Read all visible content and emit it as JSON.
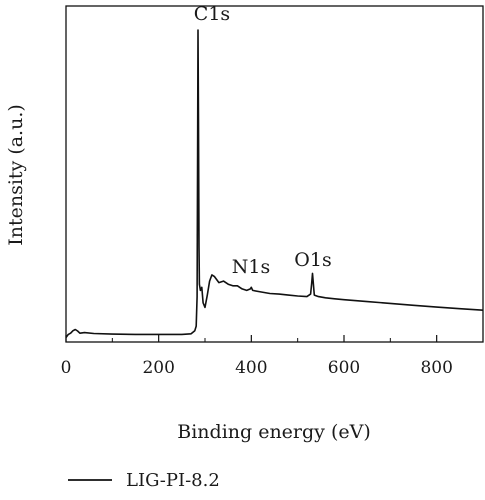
{
  "chart_data": {
    "type": "line",
    "title": "",
    "xlabel": "Binding energy (eV)",
    "ylabel": "Intensity (a.u.)",
    "xlim": [
      0,
      900
    ],
    "ylim": [
      0,
      100
    ],
    "x_ticks": [
      0,
      200,
      400,
      600,
      800
    ],
    "y_ticks_shown": false,
    "grid": false,
    "legend_position": "bottom-left",
    "series": [
      {
        "name": "LIG-PI-8.2",
        "color": "#111111",
        "points": [
          [
            0,
            0.8
          ],
          [
            5,
            1.8
          ],
          [
            10,
            2.2
          ],
          [
            15,
            3.0
          ],
          [
            20,
            3.4
          ],
          [
            25,
            2.9
          ],
          [
            30,
            2.2
          ],
          [
            40,
            2.4
          ],
          [
            60,
            2.1
          ],
          [
            100,
            1.9
          ],
          [
            150,
            1.8
          ],
          [
            200,
            1.8
          ],
          [
            250,
            1.8
          ],
          [
            270,
            2.0
          ],
          [
            278,
            3.0
          ],
          [
            281,
            4.5
          ],
          [
            283,
            14.0
          ],
          [
            284,
            60.0
          ],
          [
            285,
            100.0
          ],
          [
            286,
            70.0
          ],
          [
            287,
            30.0
          ],
          [
            288,
            18.0
          ],
          [
            290,
            16.0
          ],
          [
            293,
            17.0
          ],
          [
            296,
            12.0
          ],
          [
            300,
            10.5
          ],
          [
            305,
            14.5
          ],
          [
            310,
            19.0
          ],
          [
            315,
            21.0
          ],
          [
            320,
            20.5
          ],
          [
            330,
            18.5
          ],
          [
            340,
            19.0
          ],
          [
            350,
            18.0
          ],
          [
            360,
            17.5
          ],
          [
            370,
            17.5
          ],
          [
            380,
            16.5
          ],
          [
            390,
            16.0
          ],
          [
            398,
            16.5
          ],
          [
            400,
            17.0
          ],
          [
            403,
            16.0
          ],
          [
            420,
            15.5
          ],
          [
            440,
            15.0
          ],
          [
            460,
            14.8
          ],
          [
            480,
            14.5
          ],
          [
            500,
            14.2
          ],
          [
            520,
            14.0
          ],
          [
            528,
            14.8
          ],
          [
            530,
            18.0
          ],
          [
            532,
            21.5
          ],
          [
            534,
            18.0
          ],
          [
            536,
            14.5
          ],
          [
            545,
            14.0
          ],
          [
            560,
            13.6
          ],
          [
            580,
            13.3
          ],
          [
            600,
            13.0
          ],
          [
            650,
            12.4
          ],
          [
            700,
            11.8
          ],
          [
            750,
            11.2
          ],
          [
            800,
            10.6
          ],
          [
            850,
            10.1
          ],
          [
            900,
            9.6
          ]
        ]
      }
    ],
    "annotations": [
      {
        "text": "C1s",
        "x": 285,
        "y": 100
      },
      {
        "text": "N1s",
        "x": 400,
        "y": 17
      },
      {
        "text": "O1s",
        "x": 532,
        "y": 21.5
      }
    ]
  }
}
